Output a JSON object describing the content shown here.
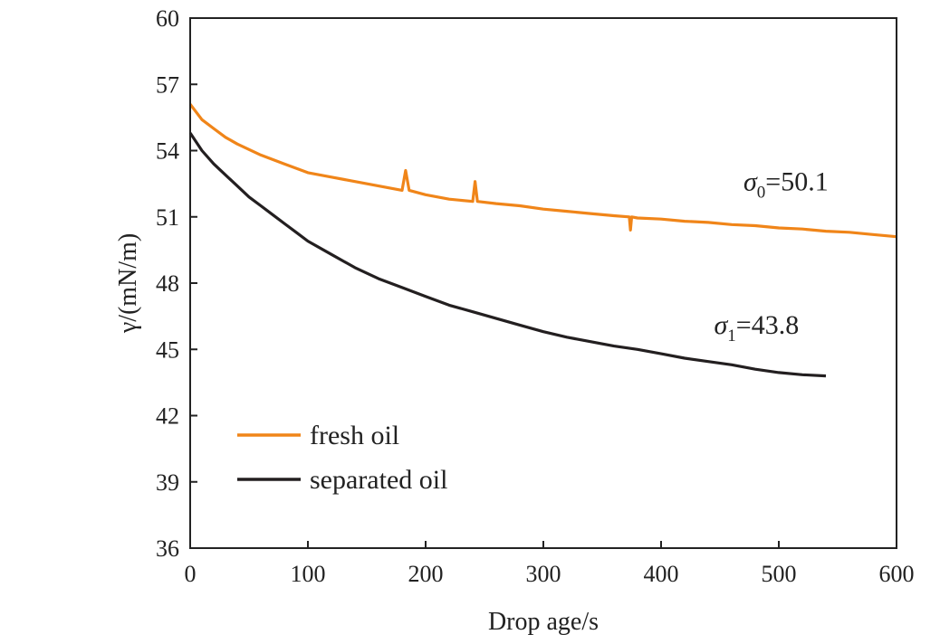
{
  "chart_data": {
    "type": "line",
    "xlabel": "Drop age/s",
    "ylabel": "γ/(mN/m)",
    "xlim": [
      0,
      600
    ],
    "ylim": [
      36,
      60
    ],
    "xticks": [
      0,
      100,
      200,
      300,
      400,
      500,
      600
    ],
    "yticks": [
      36,
      39,
      42,
      45,
      48,
      51,
      54,
      57,
      60
    ],
    "grid": false,
    "legend_position": "bottom-left",
    "series": [
      {
        "name": "fresh oil",
        "color": "#f08519",
        "x": [
          0,
          10,
          20,
          30,
          40,
          60,
          80,
          100,
          120,
          140,
          160,
          180,
          183,
          186,
          200,
          220,
          240,
          242,
          244,
          260,
          280,
          300,
          320,
          340,
          360,
          373,
          374,
          375,
          380,
          400,
          420,
          440,
          460,
          480,
          500,
          520,
          540,
          560,
          580,
          600
        ],
        "y": [
          56.1,
          55.4,
          55.0,
          54.6,
          54.3,
          53.8,
          53.4,
          53.0,
          52.8,
          52.6,
          52.4,
          52.2,
          53.1,
          52.2,
          52.0,
          51.8,
          51.7,
          52.6,
          51.7,
          51.6,
          51.5,
          51.35,
          51.25,
          51.15,
          51.05,
          51.0,
          50.4,
          51.0,
          50.95,
          50.9,
          50.8,
          50.75,
          50.65,
          50.6,
          50.5,
          50.45,
          50.35,
          50.3,
          50.2,
          50.1
        ]
      },
      {
        "name": "separated oil",
        "color": "#231f20",
        "x": [
          0,
          10,
          20,
          30,
          40,
          50,
          60,
          70,
          80,
          90,
          100,
          120,
          140,
          160,
          180,
          200,
          220,
          240,
          260,
          280,
          300,
          320,
          340,
          360,
          380,
          400,
          420,
          440,
          460,
          480,
          500,
          520,
          540
        ],
        "y": [
          54.8,
          54.0,
          53.4,
          52.9,
          52.4,
          51.9,
          51.5,
          51.1,
          50.7,
          50.3,
          49.9,
          49.3,
          48.7,
          48.2,
          47.8,
          47.4,
          47.0,
          46.7,
          46.4,
          46.1,
          45.8,
          45.55,
          45.35,
          45.15,
          45.0,
          44.8,
          44.6,
          44.45,
          44.3,
          44.1,
          43.95,
          43.85,
          43.8
        ]
      }
    ],
    "annotations": [
      {
        "symbol": "σ",
        "sub": "0",
        "text": "=50.1",
        "x": 470,
        "y": 52.2
      },
      {
        "symbol": "σ",
        "sub": "1",
        "text": "=43.8",
        "x": 445,
        "y": 45.7
      }
    ]
  }
}
